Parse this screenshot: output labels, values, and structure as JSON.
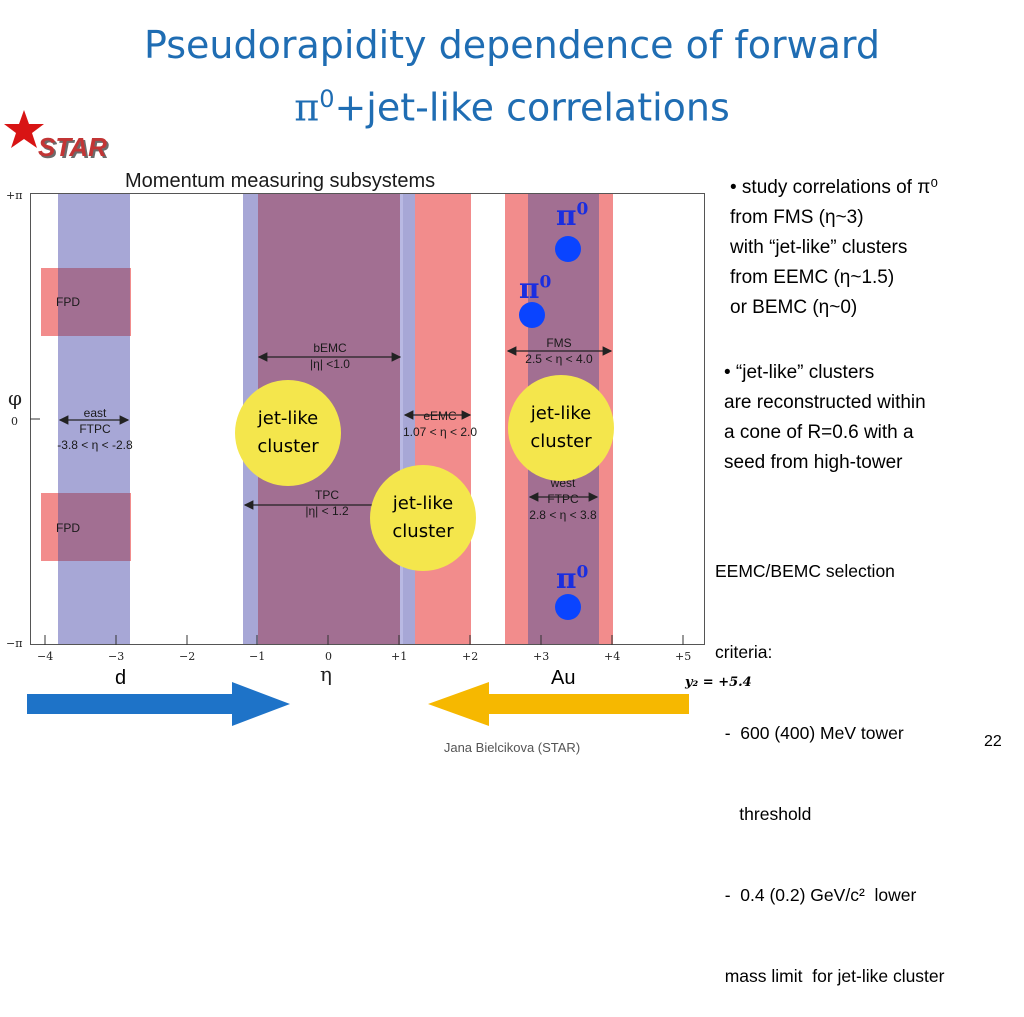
{
  "slide": {
    "title_line1": "Pseudorapidity dependence of forward",
    "title_line2_symbol": "π",
    "title_line2_sup": "0",
    "title_line2_rest": "+jet-like correlations",
    "logo_text": "STAR",
    "panel_title": "Momentum measuring subsystems",
    "footer": "Jana Bielcikova (STAR)",
    "page_number": "22"
  },
  "plot": {
    "y_ticks": [
      "+π",
      "φ",
      "0",
      "−π"
    ],
    "x_ticks": [
      "−4",
      "−3",
      "−2",
      "−1",
      "0",
      "+1",
      "+2",
      "+3",
      "+4",
      "+5"
    ],
    "x_axis_label": "η",
    "y2_label": "y₂ = +5.4",
    "subsystems": [
      {
        "name": "FPD",
        "detail": ""
      },
      {
        "name": "FPD",
        "detail": ""
      },
      {
        "name": "east",
        "detail": "FTPC",
        "range": "-3.8 < η < -2.8"
      },
      {
        "name": "bEMC",
        "detail": "|η| <1.0"
      },
      {
        "name": "TPC",
        "detail": "|η| < 1.2"
      },
      {
        "name": "eEMC",
        "detail": "1.07 < η < 2.0"
      },
      {
        "name": "FMS",
        "detail": "2.5 < η < 4.0"
      },
      {
        "name": "west",
        "detail": "FTPC",
        "range": "2.8 < η < 3.8"
      }
    ],
    "clusters": [
      {
        "line1": "jet-like",
        "line2": "cluster"
      },
      {
        "line1": "jet-like",
        "line2": "cluster"
      },
      {
        "line1": "jet-like",
        "line2": "cluster"
      }
    ],
    "pi0_symbol": "π",
    "pi0_sup": "0",
    "beam_left": "d",
    "beam_right": "Au",
    "colors": {
      "blue_band": "#a7a7d6",
      "red_band": "#f28c8c",
      "purple_overlap": "#a26f92",
      "cluster": "#f4e64c",
      "pi0": "#0a44ff",
      "beam_left": "#1e73c8",
      "beam_right": "#f6b800"
    }
  },
  "text": {
    "bullet1": [
      "• study correlations of π⁰",
      "from FMS (η~3)",
      "with “jet-like” clusters",
      "from EEMC (η~1.5)",
      "or BEMC (η~0)"
    ],
    "bullet2": [
      "• “jet-like” clusters",
      "are reconstructed within",
      "a cone of R=0.6 with a",
      "seed from high-tower"
    ],
    "criteria": [
      "EEMC/BEMC selection",
      "criteria:",
      "  -  600 (400) MeV tower",
      "     threshold",
      "  -  0.4 (0.2) GeV/c²  lower",
      "  mass limit  for jet-like cluster"
    ]
  }
}
